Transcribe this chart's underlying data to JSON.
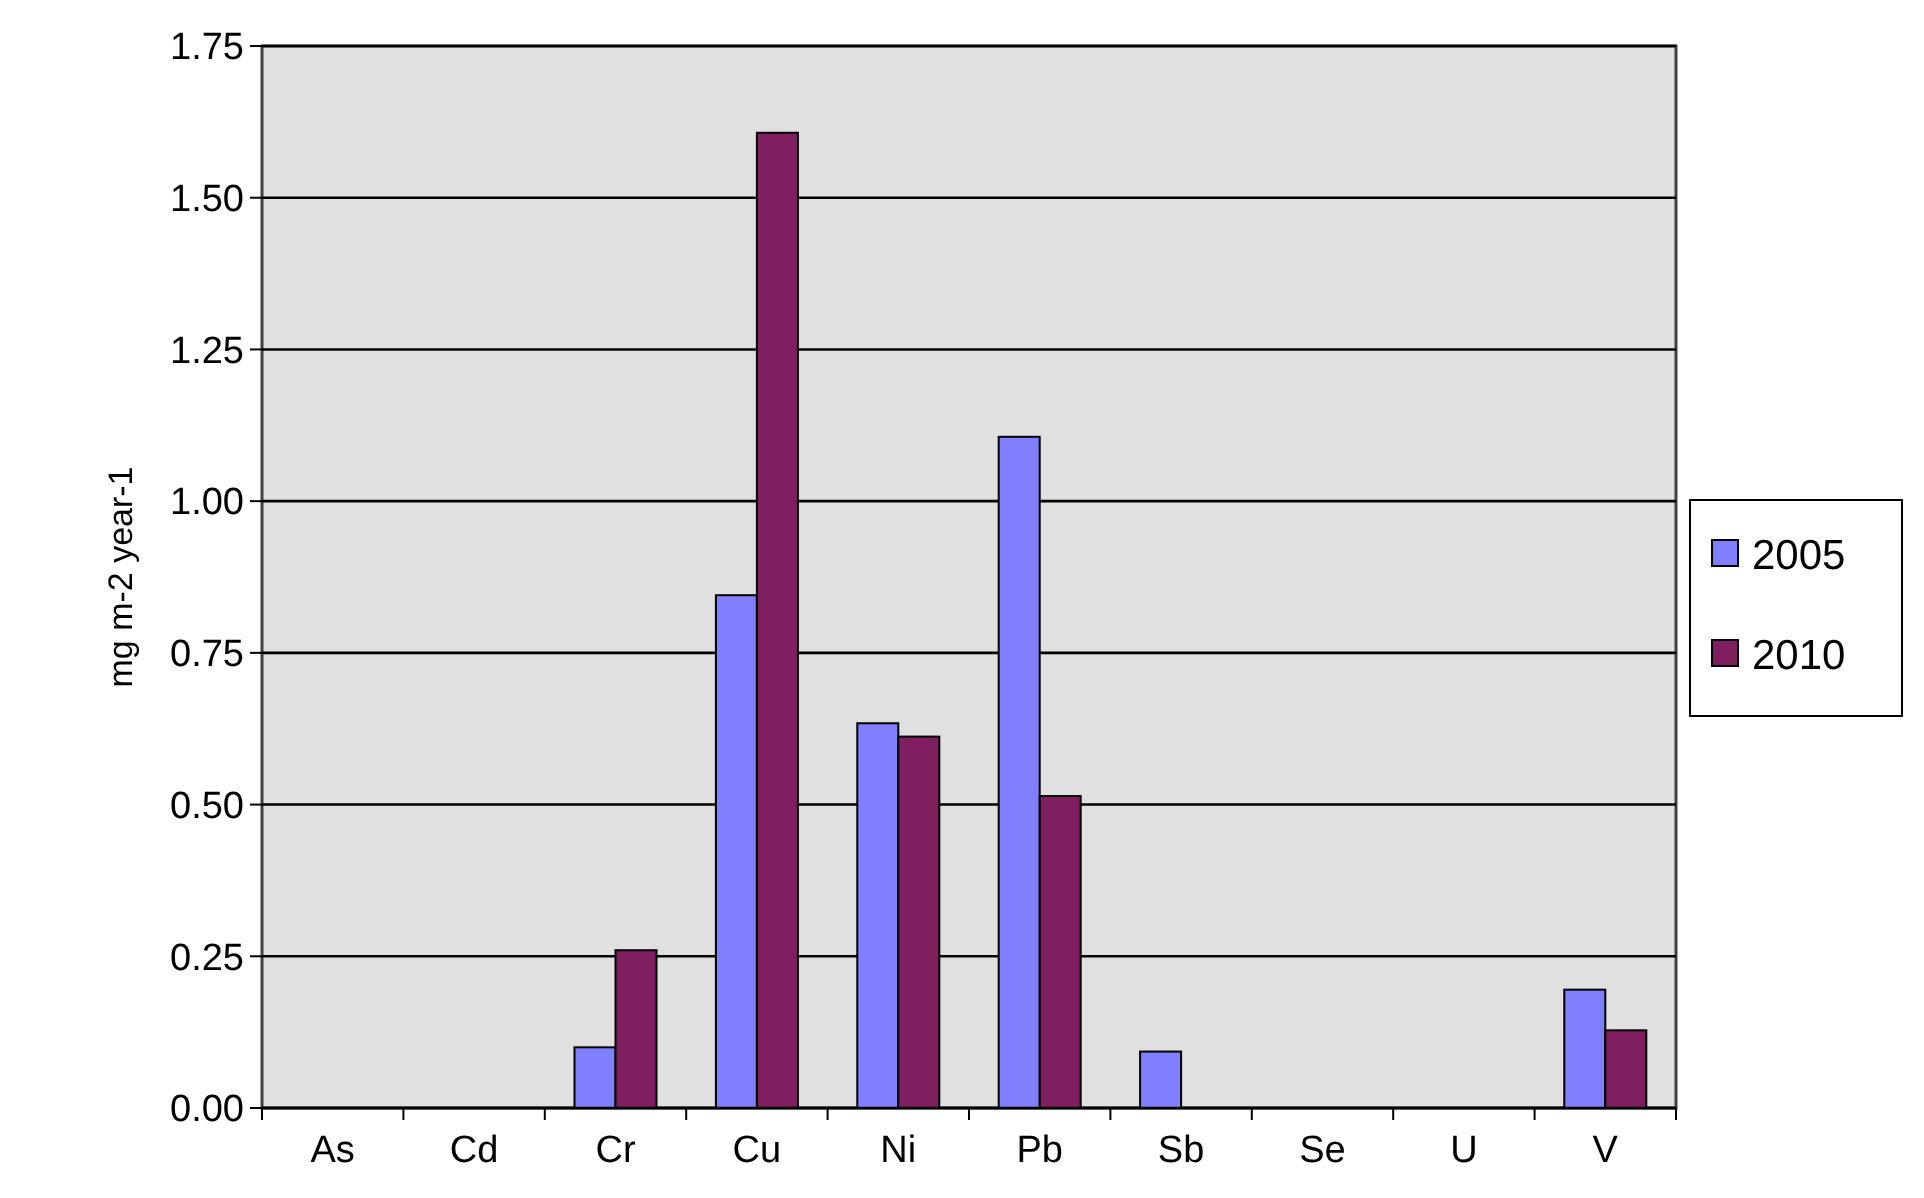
{
  "chart_data": {
    "type": "bar",
    "ylabel": "mg m-2  year-1",
    "categories": [
      "As",
      "Cd",
      "Cr",
      "Cu",
      "Ni",
      "Pb",
      "Sb",
      "Se",
      "U",
      "V"
    ],
    "series": [
      {
        "name": "2005",
        "color": "#8080ff",
        "values": [
          0,
          0,
          0.1,
          0.845,
          0.634,
          1.106,
          0.093,
          0,
          0,
          0.195
        ]
      },
      {
        "name": "2010",
        "color": "#801f60",
        "values": [
          0,
          0,
          0.26,
          1.607,
          0.612,
          0.514,
          0,
          0,
          0,
          0.128
        ]
      }
    ],
    "ylim": [
      0,
      1.75
    ],
    "yticks": [
      {
        "value": 0,
        "label": "0.00"
      },
      {
        "value": 0.25,
        "label": "0.25"
      },
      {
        "value": 0.5,
        "label": "0.50"
      },
      {
        "value": 0.75,
        "label": "0.75"
      },
      {
        "value": 1,
        "label": "1.00"
      },
      {
        "value": 1.25,
        "label": "1.25"
      },
      {
        "value": 1.5,
        "label": "1.50"
      },
      {
        "value": 1.75,
        "label": "1.75"
      }
    ],
    "grid": "y",
    "legend": "right"
  }
}
